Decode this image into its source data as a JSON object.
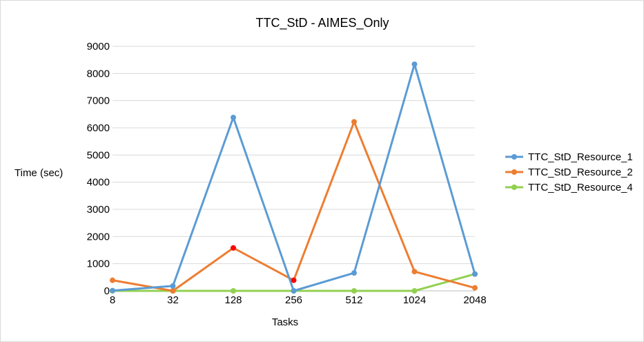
{
  "chart_data": {
    "type": "line",
    "title": "TTC_StD - AIMES_Only",
    "xlabel": "Tasks",
    "ylabel": "Time (sec)",
    "categories": [
      "8",
      "32",
      "128",
      "256",
      "512",
      "1024",
      "2048"
    ],
    "ylim": [
      0,
      9000
    ],
    "yticks": [
      0,
      1000,
      2000,
      3000,
      4000,
      5000,
      6000,
      7000,
      8000,
      9000
    ],
    "grid": true,
    "legend_position": "right",
    "series": [
      {
        "name": "TTC_StD_Resource_1",
        "color": "#5b9bd5",
        "values": [
          10,
          180,
          6380,
          0,
          660,
          8340,
          620
        ]
      },
      {
        "name": "TTC_StD_Resource_2",
        "color": "#ed7d31",
        "values": [
          390,
          0,
          1580,
          390,
          6220,
          710,
          110
        ]
      },
      {
        "name": "TTC_StD_Resource_4",
        "color": "#92d050",
        "values": [
          0,
          0,
          0,
          0,
          0,
          0,
          620
        ]
      }
    ],
    "highlighted_points": [
      {
        "series": "TTC_StD_Resource_2",
        "category": "128",
        "color": "#ff0000"
      },
      {
        "series": "TTC_StD_Resource_2",
        "category": "256",
        "color": "#ff0000"
      }
    ]
  }
}
